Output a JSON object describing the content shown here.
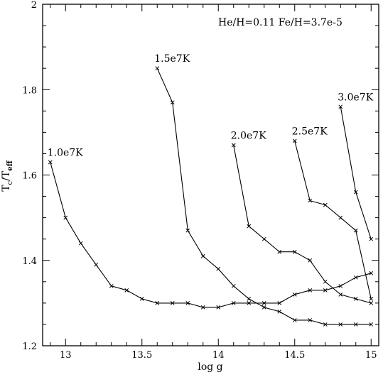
{
  "chart_data": {
    "type": "line",
    "annotation": "He/H=0.11 Fe/H=3.7e-5",
    "xlabel": "log g",
    "ylabel_main": "T",
    "ylabel_sub1": "c",
    "ylabel_sep": "/T",
    "ylabel_sub2": "eff",
    "xlim": [
      12.85,
      5.05
    ],
    "ylim": [
      1.2,
      2.0
    ],
    "xticks_major": [
      13,
      13.5,
      14,
      14.5,
      15
    ],
    "xtick_labels": [
      "13",
      "13.5",
      "14",
      "14.5",
      "15"
    ],
    "yticks_major": [
      1.2,
      1.4,
      1.6,
      1.8,
      2.0
    ],
    "ytick_labels": [
      "1.2",
      "1.4",
      "1.6",
      "1.8",
      "2"
    ],
    "grid": false,
    "colors": {
      "line": "#000000",
      "background": "#ffffff"
    },
    "series": [
      {
        "name": "1.0e7K",
        "x": [
          12.9,
          13.0,
          13.1,
          13.2,
          13.3,
          13.4,
          13.5,
          13.6,
          13.7,
          13.8,
          13.9,
          14.0,
          14.1,
          14.2,
          14.3,
          14.4,
          14.5,
          14.6,
          14.7,
          14.8,
          14.9,
          15.0
        ],
        "y": [
          1.63,
          1.5,
          1.44,
          1.39,
          1.34,
          1.33,
          1.31,
          1.3,
          1.3,
          1.3,
          1.29,
          1.29,
          1.3,
          1.3,
          1.3,
          1.3,
          1.32,
          1.33,
          1.33,
          1.34,
          1.36,
          1.37
        ]
      },
      {
        "name": "1.5e7K",
        "x": [
          13.6,
          13.7,
          13.8,
          13.9,
          14.0,
          14.1,
          14.2,
          14.3,
          14.4,
          14.5,
          14.6,
          14.7,
          14.8,
          14.9,
          15.0
        ],
        "y": [
          1.85,
          1.77,
          1.47,
          1.41,
          1.38,
          1.34,
          1.31,
          1.29,
          1.28,
          1.26,
          1.26,
          1.25,
          1.25,
          1.25,
          1.25
        ]
      },
      {
        "name": "2.0e7K",
        "x": [
          14.1,
          14.2,
          14.3,
          14.4,
          14.5,
          14.6,
          14.7,
          14.8,
          14.9,
          15.0
        ],
        "y": [
          1.67,
          1.48,
          1.45,
          1.42,
          1.42,
          1.4,
          1.35,
          1.32,
          1.31,
          1.3
        ]
      },
      {
        "name": "2.5e7K",
        "x": [
          14.5,
          14.6,
          14.7,
          14.8,
          14.9,
          15.0
        ],
        "y": [
          1.68,
          1.54,
          1.53,
          1.5,
          1.47,
          1.31
        ]
      },
      {
        "name": "3.0e7K",
        "x": [
          14.8,
          14.9,
          15.0
        ],
        "y": [
          1.76,
          1.56,
          1.45
        ]
      }
    ]
  }
}
